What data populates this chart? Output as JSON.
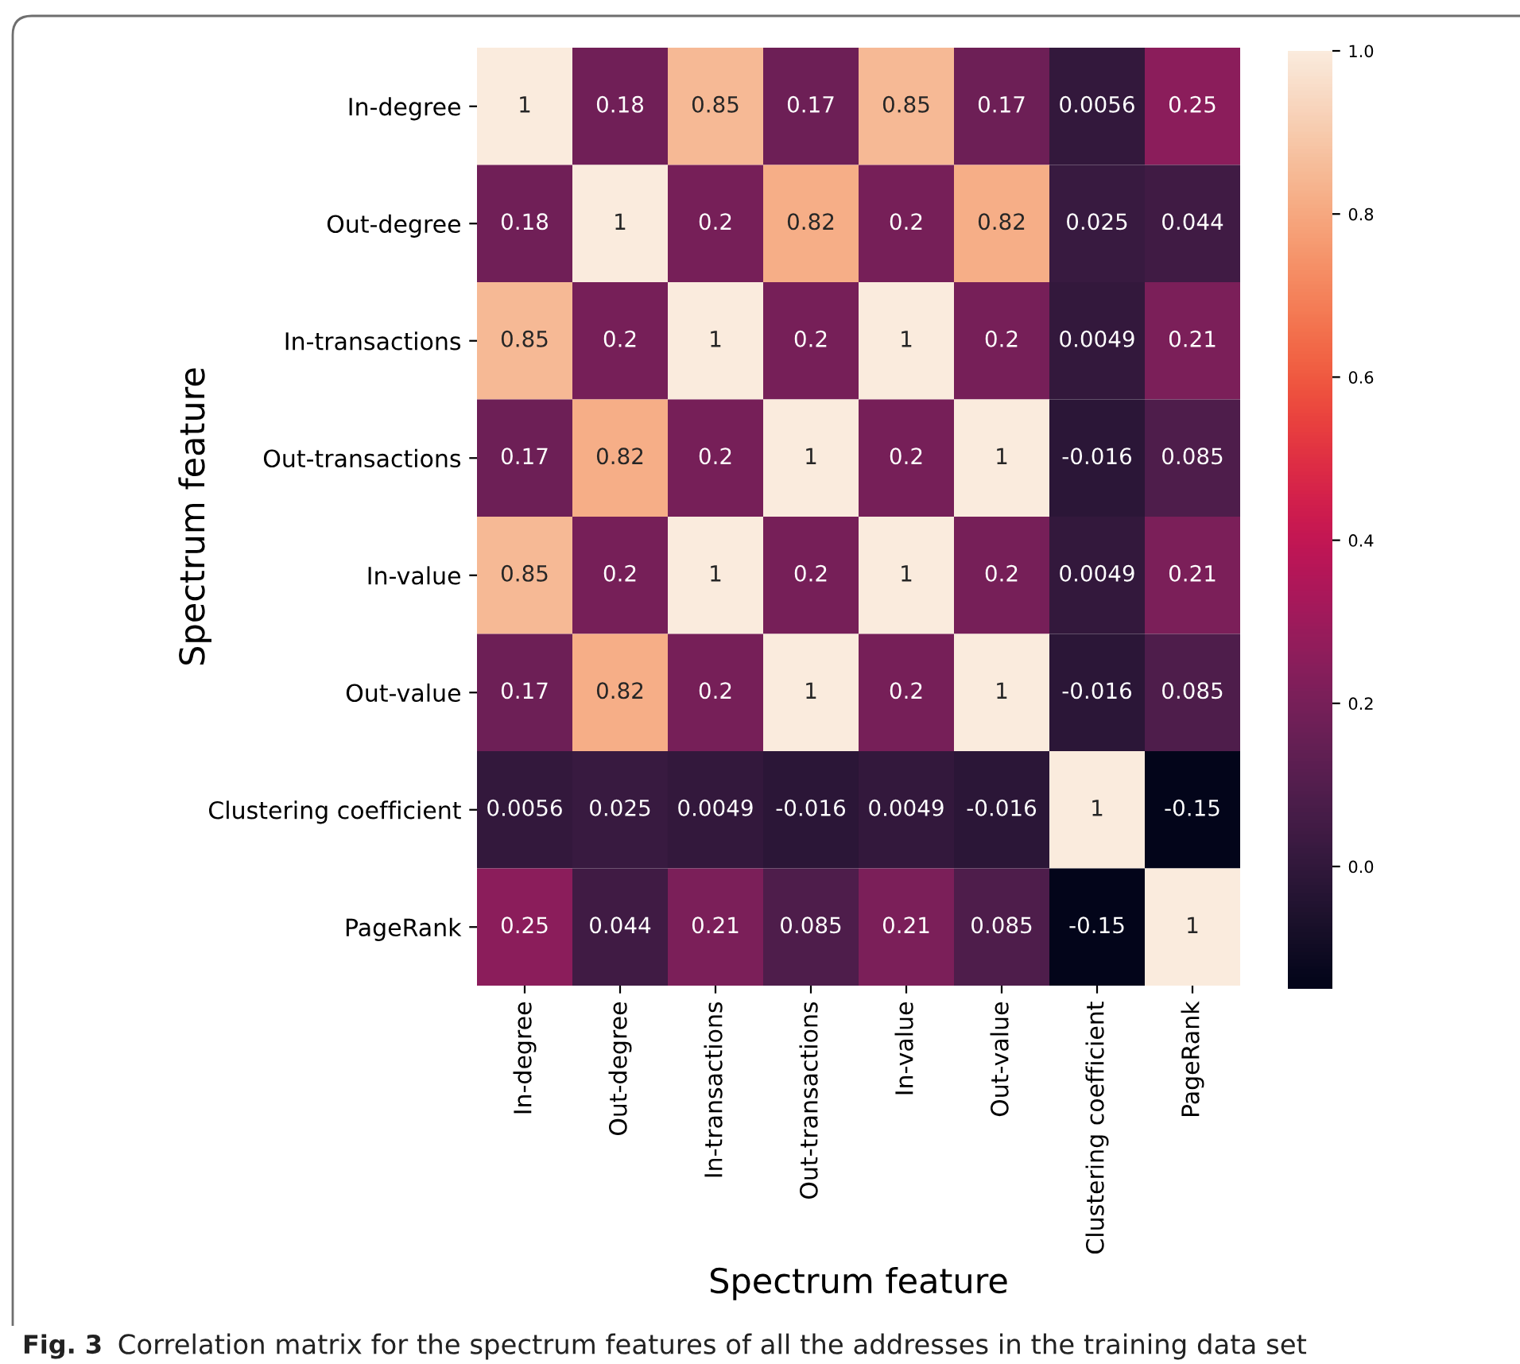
{
  "chart_data": {
    "type": "heatmap",
    "xlabel": "Spectrum feature",
    "ylabel": "Spectrum feature",
    "categories": [
      "In-degree",
      "Out-degree",
      "In-transactions",
      "Out-transactions",
      "In-value",
      "Out-value",
      "Clustering coefficient",
      "PageRank"
    ],
    "y_categories": [
      "In-degree",
      "Out-degree",
      "In-transactions",
      "Out-transactions",
      "In-value",
      "Out-value",
      "Clustering coefficient",
      "PageRank"
    ],
    "cells": [
      [
        1,
        0.18,
        0.85,
        0.17,
        0.85,
        0.17,
        0.0056,
        0.25
      ],
      [
        0.18,
        1,
        0.2,
        0.82,
        0.2,
        0.82,
        0.025,
        0.044
      ],
      [
        0.85,
        0.2,
        1,
        0.2,
        1,
        0.2,
        0.0049,
        0.21
      ],
      [
        0.17,
        0.82,
        0.2,
        1,
        0.2,
        1,
        -0.016,
        0.085
      ],
      [
        0.85,
        0.2,
        1,
        0.2,
        1,
        0.2,
        0.0049,
        0.21
      ],
      [
        0.17,
        0.82,
        0.2,
        1,
        0.2,
        1,
        -0.016,
        0.085
      ],
      [
        0.0056,
        0.025,
        0.0049,
        -0.016,
        0.0049,
        -0.016,
        1,
        -0.15
      ],
      [
        0.25,
        0.044,
        0.21,
        0.085,
        0.21,
        0.085,
        -0.15,
        1
      ]
    ],
    "data_labels": true,
    "clim": [
      -0.15,
      1
    ],
    "cticks": [
      {
        "value": 0,
        "label": "0.0"
      },
      0.2,
      0.4,
      0.6,
      0.8,
      {
        "value": 1,
        "label": "1.0"
      }
    ],
    "annotations": [
      "Fig. 3",
      "Correlation matrix for the spectrum features of all the addresses in the training data set"
    ]
  }
}
